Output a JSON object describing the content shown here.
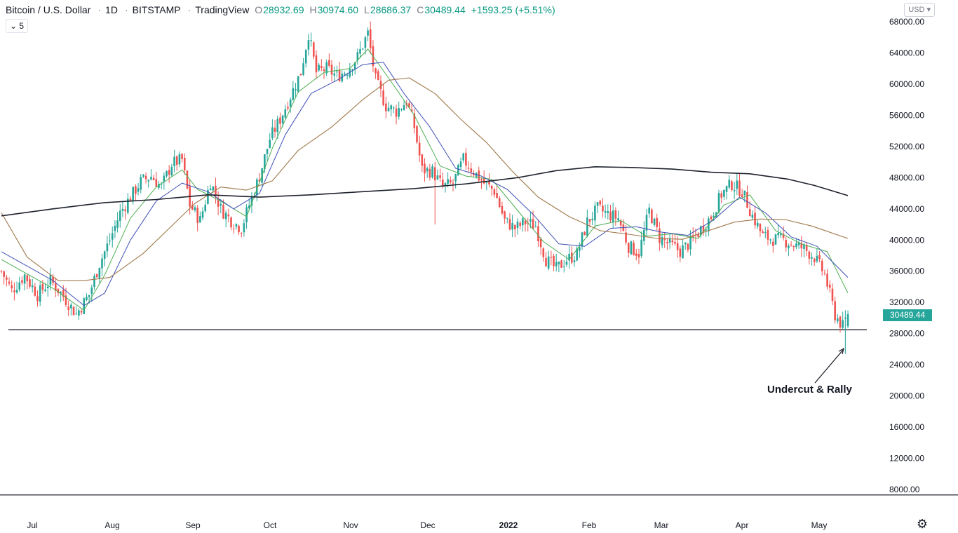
{
  "header": {
    "symbol": "Bitcoin / U.S. Dollar",
    "interval": "1D",
    "exchange": "BITSTAMP",
    "source": "TradingView",
    "o_label": "O",
    "o_value": "28932.69",
    "h_label": "H",
    "h_value": "30974.60",
    "l_label": "L",
    "l_value": "28686.37",
    "c_label": "C",
    "c_value": "30489.44",
    "change": "+1593.25 (+5.51%)"
  },
  "indicator_toggle": {
    "chevron": "⌄",
    "count": "5"
  },
  "currency": "USD",
  "settings_icon": "gear-icon",
  "colors": {
    "up": "#26a69a",
    "down": "#ef5350",
    "ema_short": "#4caf50",
    "ema_mid": "#3f51b5",
    "sma_50": "#a0784a",
    "sma_200": "#1e222d",
    "price_tag_bg": "#26a69a"
  },
  "chart_data": {
    "type": "candlestick",
    "title": "Bitcoin / U.S. Dollar",
    "ylim": [
      8000,
      68000
    ],
    "yticks": [
      "68000.00",
      "64000.00",
      "60000.00",
      "56000.00",
      "52000.00",
      "48000.00",
      "44000.00",
      "40000.00",
      "36000.00",
      "32000.00",
      "28000.00",
      "24000.00",
      "20000.00",
      "16000.00",
      "12000.00",
      "8000.00"
    ],
    "xticks": [
      "Jul",
      "Aug",
      "Sep",
      "Oct",
      "Nov",
      "Dec",
      "2022",
      "Feb",
      "Mar",
      "Apr",
      "May"
    ],
    "last_price_label": "30489.44",
    "support_level": 28500,
    "bottom_line_level": 7300,
    "price_path": [
      [
        0,
        36000
      ],
      [
        4,
        33500
      ],
      [
        9,
        35500
      ],
      [
        14,
        33000
      ],
      [
        19,
        34800
      ],
      [
        24,
        32800
      ],
      [
        29,
        30500
      ],
      [
        34,
        33000
      ],
      [
        38,
        37000
      ],
      [
        42,
        40000
      ],
      [
        46,
        43500
      ],
      [
        50,
        45500
      ],
      [
        54,
        47500
      ],
      [
        58,
        48200
      ],
      [
        62,
        46800
      ],
      [
        66,
        49800
      ],
      [
        70,
        50300
      ],
      [
        73,
        44500
      ],
      [
        77,
        42500
      ],
      [
        81,
        47500
      ],
      [
        85,
        44000
      ],
      [
        89,
        42500
      ],
      [
        93,
        41500
      ],
      [
        96,
        44500
      ],
      [
        100,
        48200
      ],
      [
        104,
        53000
      ],
      [
        108,
        55500
      ],
      [
        112,
        58500
      ],
      [
        116,
        61500
      ],
      [
        119,
        66500
      ],
      [
        122,
        61500
      ],
      [
        126,
        62000
      ],
      [
        130,
        61000
      ],
      [
        134,
        61800
      ],
      [
        138,
        63500
      ],
      [
        142,
        66500
      ],
      [
        145,
        60500
      ],
      [
        149,
        57200
      ],
      [
        153,
        56500
      ],
      [
        157,
        57800
      ],
      [
        160,
        54500
      ],
      [
        163,
        49000
      ],
      [
        167,
        48800
      ],
      [
        171,
        46800
      ],
      [
        175,
        47300
      ],
      [
        179,
        50300
      ],
      [
        183,
        48800
      ],
      [
        187,
        47300
      ],
      [
        191,
        46300
      ],
      [
        195,
        42500
      ],
      [
        199,
        41500
      ],
      [
        203,
        42300
      ],
      [
        207,
        41800
      ],
      [
        211,
        37500
      ],
      [
        215,
        36300
      ],
      [
        219,
        37500
      ],
      [
        223,
        38200
      ],
      [
        227,
        42300
      ],
      [
        231,
        44000
      ],
      [
        235,
        43300
      ],
      [
        239,
        42800
      ],
      [
        243,
        39200
      ],
      [
        247,
        38300
      ],
      [
        251,
        43800
      ],
      [
        255,
        40300
      ],
      [
        259,
        39400
      ],
      [
        263,
        38600
      ],
      [
        267,
        39700
      ],
      [
        271,
        41400
      ],
      [
        275,
        43000
      ],
      [
        279,
        45900
      ],
      [
        283,
        47200
      ],
      [
        287,
        46300
      ],
      [
        291,
        43100
      ],
      [
        295,
        40500
      ],
      [
        299,
        40100
      ],
      [
        303,
        40000
      ],
      [
        307,
        39400
      ],
      [
        311,
        38900
      ],
      [
        315,
        37800
      ],
      [
        319,
        35600
      ],
      [
        323,
        30400
      ],
      [
        326,
        28900
      ],
      [
        328,
        30489
      ]
    ],
    "series": [
      {
        "name": "",
        "values": [
          [
            0,
            37500
          ],
          [
            20,
            33800
          ],
          [
            32,
            31000
          ],
          [
            40,
            35500
          ],
          [
            50,
            42800
          ],
          [
            60,
            46800
          ],
          [
            70,
            49000
          ],
          [
            76,
            46500
          ],
          [
            85,
            45000
          ],
          [
            95,
            43000
          ],
          [
            105,
            51800
          ],
          [
            115,
            59000
          ],
          [
            125,
            61500
          ],
          [
            135,
            62000
          ],
          [
            142,
            64500
          ],
          [
            150,
            60800
          ],
          [
            160,
            56000
          ],
          [
            170,
            49500
          ],
          [
            180,
            48200
          ],
          [
            190,
            47800
          ],
          [
            200,
            43800
          ],
          [
            210,
            39800
          ],
          [
            220,
            37500
          ],
          [
            230,
            41800
          ],
          [
            240,
            42500
          ],
          [
            250,
            40500
          ],
          [
            260,
            40800
          ],
          [
            270,
            40200
          ],
          [
            280,
            44500
          ],
          [
            290,
            45800
          ],
          [
            300,
            41200
          ],
          [
            310,
            39500
          ],
          [
            320,
            38500
          ],
          [
            328,
            33200
          ]
        ]
      },
      {
        "name": "",
        "values": [
          [
            0,
            38500
          ],
          [
            20,
            34800
          ],
          [
            32,
            31600
          ],
          [
            40,
            33200
          ],
          [
            50,
            40000
          ],
          [
            60,
            45000
          ],
          [
            70,
            47300
          ],
          [
            80,
            46200
          ],
          [
            90,
            44000
          ],
          [
            100,
            46000
          ],
          [
            110,
            53500
          ],
          [
            120,
            58800
          ],
          [
            130,
            60500
          ],
          [
            140,
            62500
          ],
          [
            148,
            62800
          ],
          [
            156,
            58800
          ],
          [
            166,
            54500
          ],
          [
            176,
            49200
          ],
          [
            186,
            48200
          ],
          [
            196,
            46500
          ],
          [
            206,
            43300
          ],
          [
            216,
            39500
          ],
          [
            226,
            39200
          ],
          [
            236,
            41500
          ],
          [
            246,
            41700
          ],
          [
            256,
            41000
          ],
          [
            266,
            40600
          ],
          [
            276,
            42600
          ],
          [
            286,
            45500
          ],
          [
            296,
            43500
          ],
          [
            306,
            40400
          ],
          [
            316,
            39200
          ],
          [
            328,
            35200
          ]
        ]
      },
      {
        "name": "",
        "values": [
          [
            0,
            43500
          ],
          [
            10,
            37800
          ],
          [
            22,
            34800
          ],
          [
            32,
            34800
          ],
          [
            42,
            35200
          ],
          [
            55,
            38300
          ],
          [
            65,
            41500
          ],
          [
            75,
            44700
          ],
          [
            85,
            46800
          ],
          [
            95,
            46400
          ],
          [
            105,
            47600
          ],
          [
            115,
            51500
          ],
          [
            128,
            54500
          ],
          [
            140,
            58000
          ],
          [
            150,
            60500
          ],
          [
            158,
            60800
          ],
          [
            168,
            58800
          ],
          [
            178,
            55500
          ],
          [
            188,
            52500
          ],
          [
            198,
            48800
          ],
          [
            208,
            45500
          ],
          [
            220,
            43000
          ],
          [
            232,
            41200
          ],
          [
            244,
            40700
          ],
          [
            254,
            40200
          ],
          [
            264,
            40100
          ],
          [
            274,
            41200
          ],
          [
            284,
            42300
          ],
          [
            294,
            42700
          ],
          [
            304,
            42600
          ],
          [
            314,
            41800
          ],
          [
            328,
            40200
          ]
        ]
      },
      {
        "name": "",
        "values": [
          [
            0,
            43100
          ],
          [
            20,
            44000
          ],
          [
            40,
            44800
          ],
          [
            60,
            45200
          ],
          [
            80,
            45800
          ],
          [
            100,
            45500
          ],
          [
            120,
            45800
          ],
          [
            140,
            46200
          ],
          [
            160,
            46600
          ],
          [
            180,
            47200
          ],
          [
            200,
            48000
          ],
          [
            215,
            48900
          ],
          [
            230,
            49400
          ],
          [
            245,
            49300
          ],
          [
            260,
            49100
          ],
          [
            275,
            48700
          ],
          [
            290,
            48500
          ],
          [
            305,
            47800
          ],
          [
            315,
            47000
          ],
          [
            328,
            45700
          ]
        ]
      }
    ],
    "annotation": "Undercut & Rally"
  }
}
